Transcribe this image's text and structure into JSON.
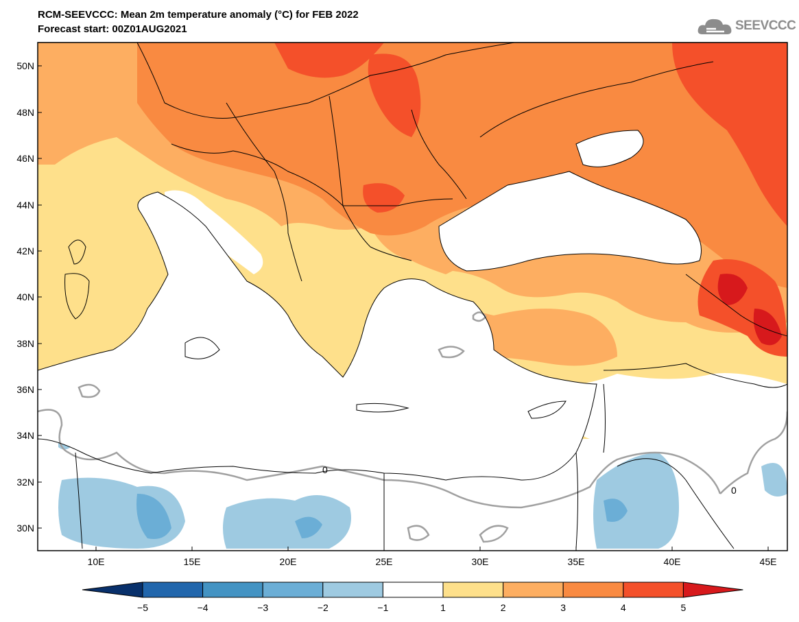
{
  "header": {
    "title_line1": "RCM-SEEVCCC: Mean 2m temperature anomaly (°C) for FEB 2022",
    "title_line2": "Forecast start: 00Z01AUG2021",
    "logo_text": "SEEVCCC"
  },
  "map": {
    "lon_labels": [
      "10E",
      "15E",
      "20E",
      "25E",
      "30E",
      "35E",
      "40E",
      "45E"
    ],
    "lat_labels": [
      "50N",
      "48N",
      "46N",
      "44N",
      "42N",
      "40N",
      "38N",
      "36N",
      "34N",
      "32N",
      "30N"
    ],
    "contour_label": "0",
    "colors": {
      "land_border": "#000000",
      "zero_contour": "#a0a0a0"
    }
  },
  "colorbar": {
    "labels": [
      "−5",
      "−4",
      "−3",
      "−2",
      "−1",
      "1",
      "2",
      "3",
      "4",
      "5"
    ],
    "colors": [
      "#08306b",
      "#2166ac",
      "#4393c3",
      "#6baed6",
      "#9ecae1",
      "#ffffff",
      "#fee08b",
      "#fdae61",
      "#f98a41",
      "#f4502a",
      "#d7191c"
    ]
  }
}
